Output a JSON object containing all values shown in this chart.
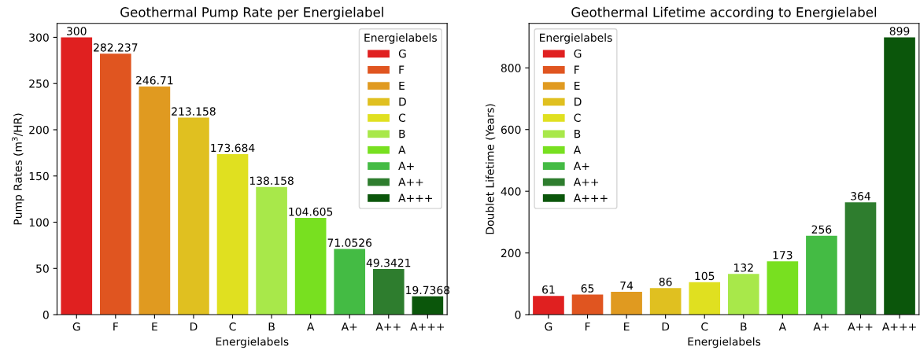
{
  "chart_data": [
    {
      "type": "bar",
      "title": "Geothermal Pump Rate per Energielabel",
      "xlabel": "Energielabels",
      "ylabel": "Pump Rates (m$^{3}$/HR)",
      "legend_title": "Energielabels",
      "legend": "top right",
      "categories": [
        "G",
        "F",
        "E",
        "D",
        "C",
        "B",
        "A",
        "A+",
        "A++",
        "A+++"
      ],
      "series": [
        {
          "name": "G",
          "color": "#e02020",
          "values": [
            300,
            null,
            null,
            null,
            null,
            null,
            null,
            null,
            null,
            null
          ]
        },
        {
          "name": "F",
          "color": "#e05520",
          "values": [
            null,
            282.237,
            null,
            null,
            null,
            null,
            null,
            null,
            null,
            null
          ]
        },
        {
          "name": "E",
          "color": "#e09a20",
          "values": [
            null,
            null,
            246.71,
            null,
            null,
            null,
            null,
            null,
            null,
            null
          ]
        },
        {
          "name": "D",
          "color": "#e0c020",
          "values": [
            null,
            null,
            null,
            213.158,
            null,
            null,
            null,
            null,
            null,
            null
          ]
        },
        {
          "name": "C",
          "color": "#e0e020",
          "values": [
            null,
            null,
            null,
            null,
            173.684,
            null,
            null,
            null,
            null,
            null
          ]
        },
        {
          "name": "B",
          "color": "#a8e84a",
          "values": [
            null,
            null,
            null,
            null,
            null,
            138.158,
            null,
            null,
            null,
            null
          ]
        },
        {
          "name": "A",
          "color": "#78e020",
          "values": [
            null,
            null,
            null,
            null,
            null,
            null,
            104.605,
            null,
            null,
            null
          ]
        },
        {
          "name": "A+",
          "color": "#44bb44",
          "values": [
            null,
            null,
            null,
            null,
            null,
            null,
            null,
            71.0526,
            null,
            null
          ]
        },
        {
          "name": "A++",
          "color": "#2e7d2e",
          "values": [
            null,
            null,
            null,
            null,
            null,
            null,
            null,
            null,
            49.3421,
            null
          ]
        },
        {
          "name": "A+++",
          "color": "#0b560b",
          "values": [
            null,
            null,
            null,
            null,
            null,
            null,
            null,
            null,
            null,
            19.7368
          ]
        }
      ],
      "ylim": [
        0,
        315
      ],
      "yticks": [
        0,
        50,
        100,
        150,
        200,
        250,
        300
      ],
      "data_labels": true
    },
    {
      "type": "bar",
      "title": "Geothermal Lifetime according to Energielabel",
      "xlabel": "Energielabels",
      "ylabel": "Doublet Lifetime (Years)",
      "legend_title": "Energielabels",
      "legend": "top left",
      "categories": [
        "G",
        "F",
        "E",
        "D",
        "C",
        "B",
        "A",
        "A+",
        "A++",
        "A+++"
      ],
      "series": [
        {
          "name": "G",
          "color": "#e02020",
          "values": [
            61,
            null,
            null,
            null,
            null,
            null,
            null,
            null,
            null,
            null
          ]
        },
        {
          "name": "F",
          "color": "#e05520",
          "values": [
            null,
            65,
            null,
            null,
            null,
            null,
            null,
            null,
            null,
            null
          ]
        },
        {
          "name": "E",
          "color": "#e09a20",
          "values": [
            null,
            null,
            74,
            null,
            null,
            null,
            null,
            null,
            null,
            null
          ]
        },
        {
          "name": "D",
          "color": "#e0c020",
          "values": [
            null,
            null,
            null,
            86,
            null,
            null,
            null,
            null,
            null,
            null
          ]
        },
        {
          "name": "C",
          "color": "#e0e020",
          "values": [
            null,
            null,
            null,
            null,
            105,
            null,
            null,
            null,
            null,
            null
          ]
        },
        {
          "name": "B",
          "color": "#a8e84a",
          "values": [
            null,
            null,
            null,
            null,
            null,
            132,
            null,
            null,
            null,
            null
          ]
        },
        {
          "name": "A",
          "color": "#78e020",
          "values": [
            null,
            null,
            null,
            null,
            null,
            null,
            173,
            null,
            null,
            null
          ]
        },
        {
          "name": "A+",
          "color": "#44bb44",
          "values": [
            null,
            null,
            null,
            null,
            null,
            null,
            null,
            256,
            null,
            null
          ]
        },
        {
          "name": "A++",
          "color": "#2e7d2e",
          "values": [
            null,
            null,
            null,
            null,
            null,
            null,
            null,
            null,
            364,
            null
          ]
        },
        {
          "name": "A+++",
          "color": "#0b560b",
          "values": [
            null,
            null,
            null,
            null,
            null,
            null,
            null,
            null,
            null,
            899
          ]
        }
      ],
      "ylim": [
        0,
        944
      ],
      "yticks": [
        0,
        200,
        400,
        600,
        800
      ],
      "data_labels": true
    }
  ]
}
